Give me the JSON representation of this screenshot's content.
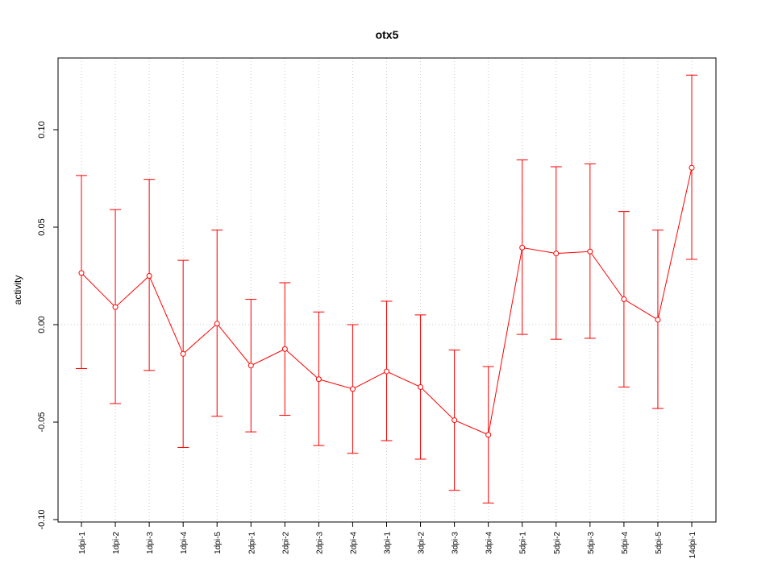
{
  "chart_data": {
    "type": "line",
    "title": "otx5",
    "xlabel": "",
    "ylabel": "activity",
    "ylim": [
      -0.1,
      0.13
    ],
    "y_ticks": [
      "-0.10",
      "-0.05",
      "0.00",
      "0.05",
      "0.10"
    ],
    "y_tick_values": [
      -0.1,
      -0.05,
      0.0,
      0.05,
      0.1
    ],
    "grid": "dotted-vertical-at-categories-and-horizontal-at-zero",
    "series_color": "#ff0000",
    "categories": [
      "1dpi-1",
      "1dpi-2",
      "1dpi-3",
      "1dpi-4",
      "1dpi-5",
      "2dpi-1",
      "2dpi-2",
      "2dpi-3",
      "2dpi-4",
      "3dpi-1",
      "3dpi-2",
      "3dpi-3",
      "3dpi-4",
      "5dpi-1",
      "5dpi-2",
      "5dpi-3",
      "5dpi-4",
      "5dpi-5",
      "14dpi-1"
    ],
    "series": [
      {
        "values": [
          0.0265,
          0.009,
          0.025,
          -0.015,
          0.0005,
          -0.021,
          -0.0125,
          -0.028,
          -0.033,
          -0.024,
          -0.032,
          -0.049,
          -0.0565,
          0.0395,
          0.0365,
          0.0375,
          0.013,
          0.0025,
          0.0805
        ],
        "error_upper": [
          0.0765,
          0.059,
          0.0745,
          0.033,
          0.0485,
          0.013,
          0.0215,
          0.0065,
          0.0,
          0.012,
          0.005,
          -0.013,
          -0.0215,
          0.0845,
          0.081,
          0.0825,
          0.058,
          0.0485,
          0.128
        ],
        "error_lower": [
          -0.0225,
          -0.0405,
          -0.0235,
          -0.063,
          -0.047,
          -0.055,
          -0.0465,
          -0.062,
          -0.066,
          -0.0595,
          -0.069,
          -0.085,
          -0.0915,
          -0.005,
          -0.0075,
          -0.007,
          -0.032,
          -0.043,
          0.0335
        ]
      }
    ]
  }
}
